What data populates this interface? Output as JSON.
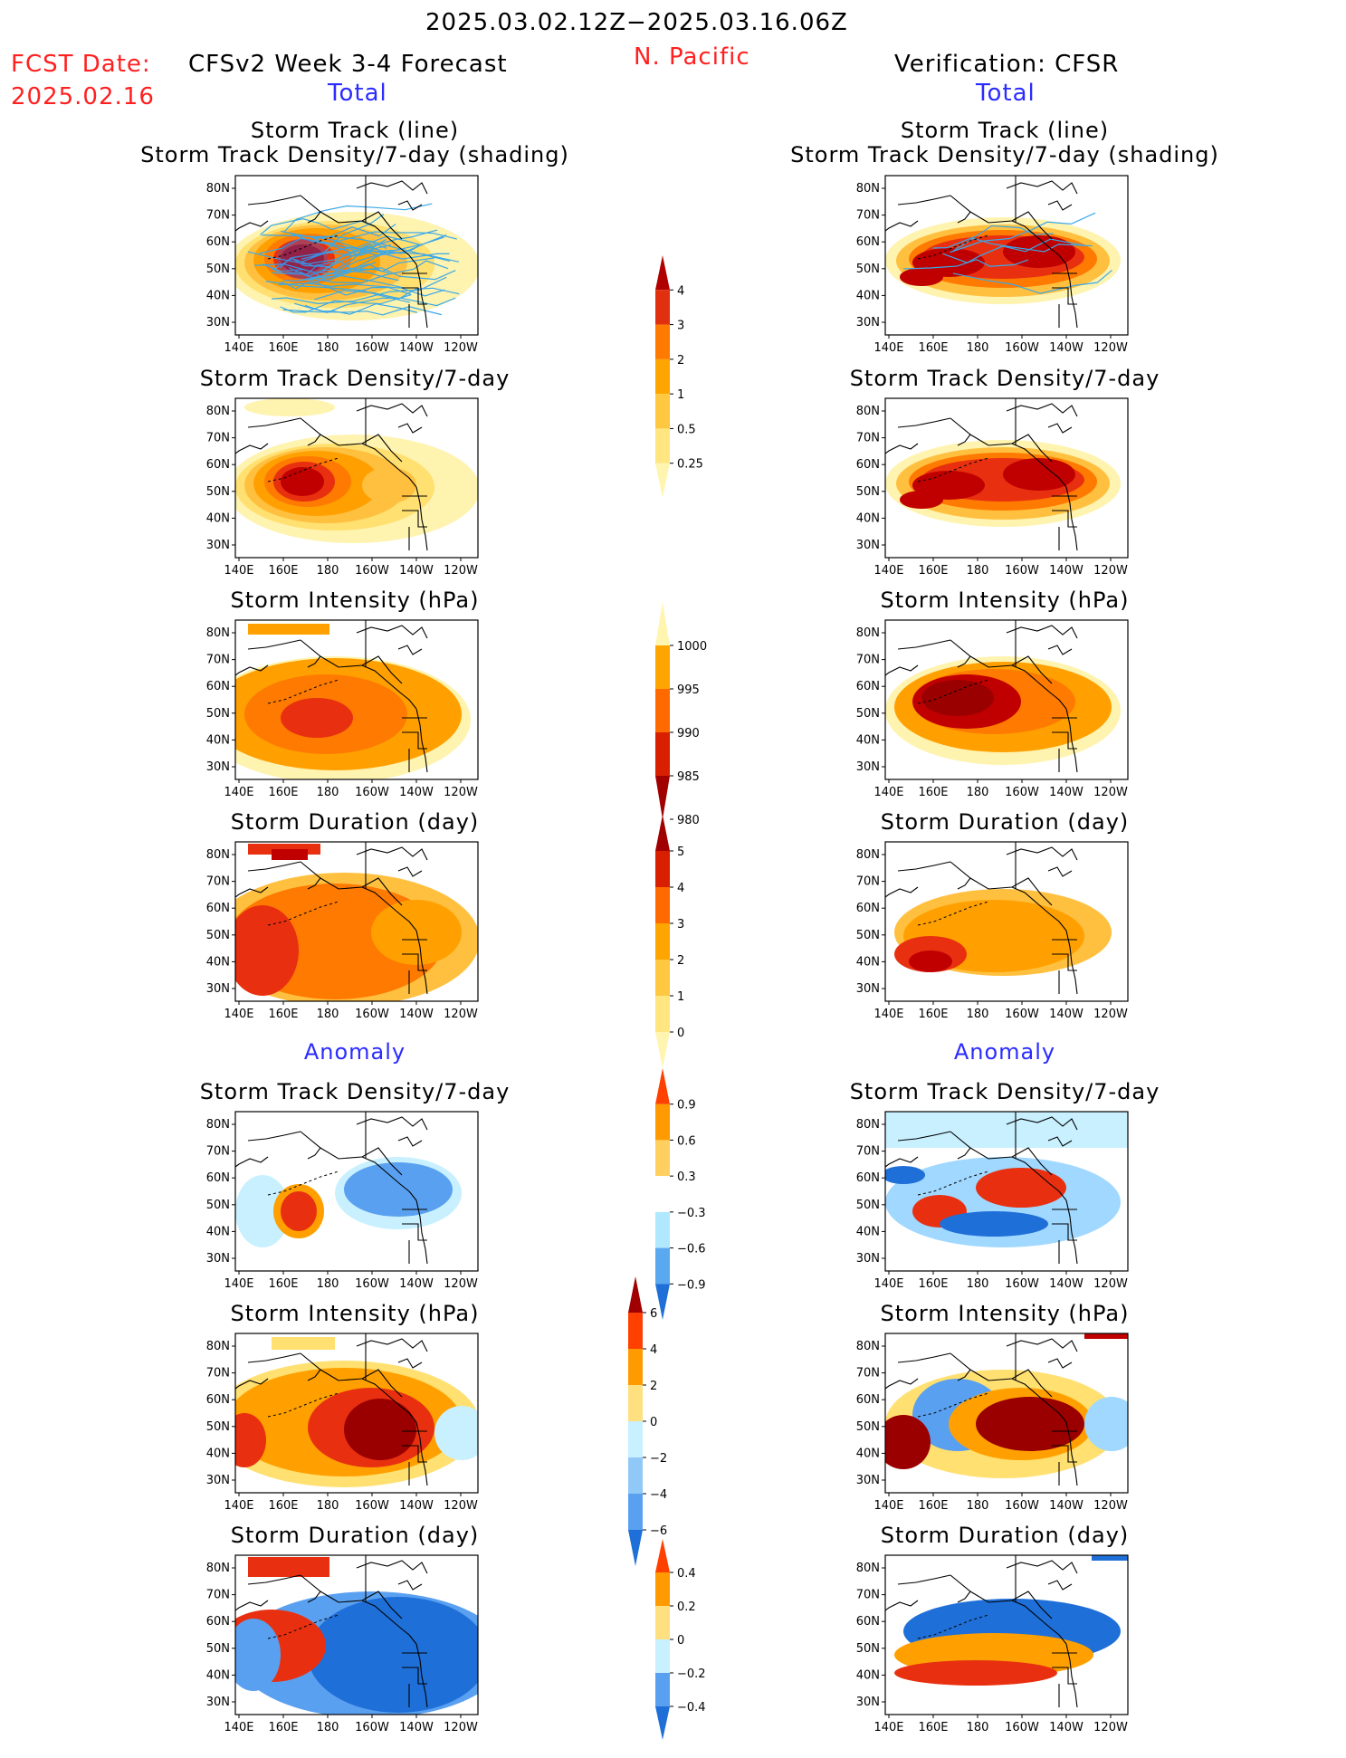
{
  "header": {
    "date_range": "2025.03.02.12Z−2025.03.16.06Z",
    "fcst_date_label": "FCST Date:",
    "fcst_date_value": "2025.02.16",
    "model_title": "CFSv2 Week 3-4 Forecast",
    "region": "N. Pacific",
    "verification_title": "Verification: CFSR",
    "left_section_total": "Total",
    "right_section_total": "Total",
    "left_section_anomaly": "Anomaly",
    "right_section_anomaly": "Anomaly"
  },
  "axes": {
    "lat_labels": [
      "80N",
      "70N",
      "60N",
      "50N",
      "40N",
      "30N"
    ],
    "lon_labels": [
      "140E",
      "160E",
      "180",
      "160W",
      "140W",
      "120W"
    ]
  },
  "panels": {
    "row1_title_a": "Storm Track (line)",
    "row1_title_b": "Storm Track Density/7-day (shading)",
    "density": "Storm Track Density/7-day",
    "intensity": "Storm Intensity (hPa)",
    "duration": "Storm Duration (day)"
  },
  "colorbars": {
    "density_total": {
      "ticks": [
        "4",
        "3",
        "2",
        "1",
        "0.5",
        "0.25"
      ],
      "colors": [
        "#b00000",
        "#e03010",
        "#ff7a00",
        "#ffa500",
        "#ffc840",
        "#ffe680",
        "#fff5b0"
      ]
    },
    "intensity_total": {
      "ticks": [
        "1000",
        "995",
        "990",
        "985",
        "980"
      ],
      "colors": [
        "#fff5b0",
        "#ffa500",
        "#ff6a00",
        "#d82000",
        "#a00000"
      ]
    },
    "duration_total": {
      "ticks": [
        "5",
        "4",
        "3",
        "2",
        "1",
        "0"
      ],
      "colors": [
        "#a00000",
        "#d82000",
        "#ff6a00",
        "#ffa500",
        "#ffc840",
        "#ffe680",
        "#fff5b0"
      ]
    },
    "density_anom": {
      "ticks": [
        "0.9",
        "0.6",
        "0.3",
        "−0.3",
        "−0.6",
        "−0.9"
      ],
      "colors": [
        "#ff4000",
        "#ff9a00",
        "#ffd060",
        "#ffffff",
        "#b0e8ff",
        "#5aa8f0",
        "#1f6fd8"
      ]
    },
    "intensity_anom": {
      "ticks": [
        "6",
        "4",
        "2",
        "0",
        "−2",
        "−4",
        "−6"
      ],
      "colors": [
        "#a00000",
        "#ff4000",
        "#ff9a00",
        "#ffe080",
        "#c8f0ff",
        "#90c8f8",
        "#5aa0f0",
        "#1f6fd8"
      ]
    },
    "duration_anom": {
      "ticks": [
        "0.4",
        "0.2",
        "0",
        "−0.2",
        "−0.4"
      ],
      "colors": [
        "#ff4000",
        "#ff9a00",
        "#ffe080",
        "#c8f0ff",
        "#5aa0f0",
        "#1f6fd8"
      ]
    }
  }
}
